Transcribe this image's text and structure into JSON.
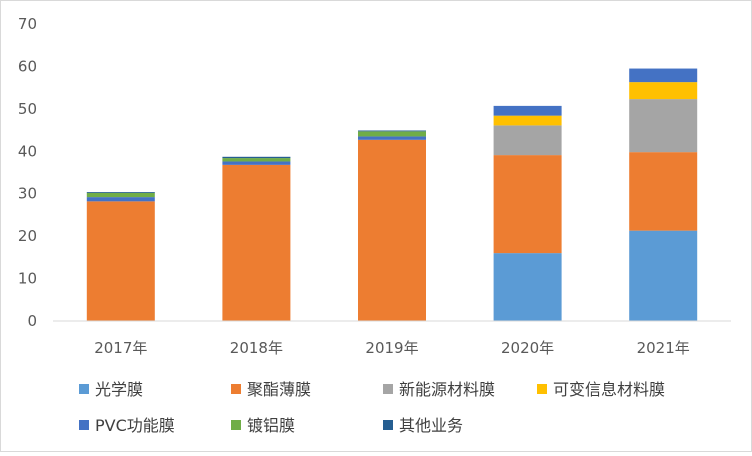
{
  "chart_data": {
    "type": "bar",
    "stacked": true,
    "title": "",
    "xlabel": "",
    "ylabel": "",
    "ylim": [
      0,
      70
    ],
    "yticks": [
      0,
      10,
      20,
      30,
      40,
      50,
      60,
      70
    ],
    "grid": false,
    "legend_position": "bottom",
    "categories": [
      "2017年",
      "2018年",
      "2019年",
      "2020年",
      "2021年"
    ],
    "series": [
      {
        "name": "光学膜",
        "color": "#5B9BD5",
        "values": [
          0,
          0,
          0,
          16.0,
          21.3
        ]
      },
      {
        "name": "聚酯薄膜",
        "color": "#ED7D31",
        "values": [
          28.2,
          36.8,
          42.7,
          23.1,
          18.5
        ]
      },
      {
        "name": "新能源材料膜",
        "color": "#A5A5A5",
        "values": [
          0,
          0,
          0,
          7.0,
          12.5
        ]
      },
      {
        "name": "可变信息材料膜",
        "color": "#FFC000",
        "values": [
          0,
          0,
          0,
          2.3,
          4.0
        ]
      },
      {
        "name": "PVC功能膜",
        "color": "#4472C4",
        "values": [
          1.0,
          0.8,
          0.8,
          2.3,
          3.2
        ]
      },
      {
        "name": "镀铝膜",
        "color": "#70AD47",
        "values": [
          1.0,
          0.8,
          1.2,
          0,
          0
        ]
      },
      {
        "name": "其他业务",
        "color": "#255E91",
        "values": [
          0.2,
          0.3,
          0.2,
          0,
          0
        ]
      }
    ]
  }
}
